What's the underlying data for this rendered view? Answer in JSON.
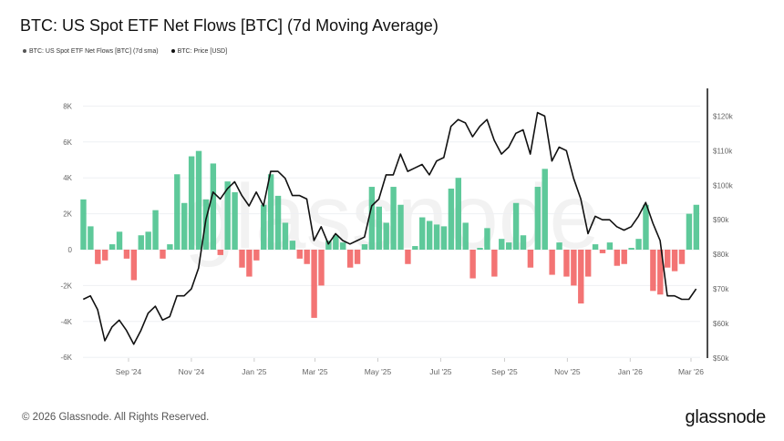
{
  "title": "BTC: US Spot ETF Net Flows [BTC] (7d Moving Average)",
  "legend": [
    {
      "label": "BTC: US Spot ETF Net Flows [BTC] (7d sma)",
      "color": "#555555"
    },
    {
      "label": "BTC: Price [USD]",
      "color": "#111111"
    }
  ],
  "footer": {
    "copyright": "© 2026 Glassnode. All Rights Reserved.",
    "logo": "glassnode",
    "watermark": "glassnode"
  },
  "chart_data": {
    "type": "bar+line",
    "title": "BTC: US Spot ETF Net Flows [BTC] (7d Moving Average)",
    "grid": true,
    "left_axis": {
      "ylim": [
        -6000,
        8000
      ],
      "ticks": [
        -6000,
        -4000,
        -2000,
        0,
        2000,
        4000,
        6000,
        8000
      ],
      "tick_labels": [
        "-6K",
        "-4K",
        "-2K",
        "0",
        "2K",
        "4K",
        "6K",
        "8K"
      ]
    },
    "right_axis": {
      "ylim": [
        50000,
        128000
      ],
      "ticks": [
        50000,
        60000,
        70000,
        80000,
        90000,
        100000,
        110000,
        120000
      ],
      "tick_labels": [
        "$50k",
        "$60k",
        "$70k",
        "$80k",
        "$90k",
        "$100k",
        "$110k",
        "$120k"
      ]
    },
    "x_ticks": [
      {
        "date": "2024-09-01",
        "label": "Sep '24"
      },
      {
        "date": "2024-11-01",
        "label": "Nov '24"
      },
      {
        "date": "2025-01-01",
        "label": "Jan '25"
      },
      {
        "date": "2025-03-01",
        "label": "Mar '25"
      },
      {
        "date": "2025-05-01",
        "label": "May '25"
      },
      {
        "date": "2025-07-01",
        "label": "Jul '25"
      },
      {
        "date": "2025-09-01",
        "label": "Sep '25"
      },
      {
        "date": "2025-11-01",
        "label": "Nov '25"
      },
      {
        "date": "2026-01-01",
        "label": "Jan '26"
      },
      {
        "date": "2026-03-01",
        "label": "Mar '26"
      }
    ],
    "colors": {
      "positive": "#4cc38f",
      "negative": "#f26565",
      "price": "#111111"
    },
    "dates": [
      "2024-07-19",
      "2024-07-26",
      "2024-08-02",
      "2024-08-09",
      "2024-08-16",
      "2024-08-23",
      "2024-08-30",
      "2024-09-06",
      "2024-09-13",
      "2024-09-20",
      "2024-09-27",
      "2024-10-04",
      "2024-10-11",
      "2024-10-18",
      "2024-10-25",
      "2024-11-01",
      "2024-11-08",
      "2024-11-15",
      "2024-11-22",
      "2024-11-29",
      "2024-12-06",
      "2024-12-13",
      "2024-12-20",
      "2024-12-27",
      "2025-01-03",
      "2025-01-10",
      "2025-01-17",
      "2025-01-24",
      "2025-01-31",
      "2025-02-07",
      "2025-02-14",
      "2025-02-21",
      "2025-02-28",
      "2025-03-07",
      "2025-03-14",
      "2025-03-21",
      "2025-03-28",
      "2025-04-04",
      "2025-04-11",
      "2025-04-18",
      "2025-04-25",
      "2025-05-02",
      "2025-05-09",
      "2025-05-16",
      "2025-05-23",
      "2025-05-30",
      "2025-06-06",
      "2025-06-13",
      "2025-06-20",
      "2025-06-27",
      "2025-07-04",
      "2025-07-11",
      "2025-07-18",
      "2025-07-25",
      "2025-08-01",
      "2025-08-08",
      "2025-08-15",
      "2025-08-22",
      "2025-08-29",
      "2025-09-05",
      "2025-09-12",
      "2025-09-19",
      "2025-09-26",
      "2025-10-03",
      "2025-10-10",
      "2025-10-17",
      "2025-10-24",
      "2025-10-31",
      "2025-11-07",
      "2025-11-14",
      "2025-11-21",
      "2025-11-28",
      "2025-12-05",
      "2025-12-12",
      "2025-12-19",
      "2025-12-26",
      "2026-01-02",
      "2026-01-09",
      "2026-01-16",
      "2026-01-23",
      "2026-01-30",
      "2026-02-06",
      "2026-02-13",
      "2026-02-20",
      "2026-02-27",
      "2026-03-06"
    ],
    "series": [
      {
        "name": "BTC: US Spot ETF Net Flows [BTC] (7d sma)",
        "axis": "left",
        "type": "bar",
        "values": [
          2800,
          1300,
          -800,
          -600,
          300,
          1000,
          -500,
          -1700,
          800,
          1000,
          2200,
          -500,
          300,
          4200,
          2600,
          5200,
          5500,
          2800,
          4800,
          -300,
          3800,
          3200,
          -1000,
          -1500,
          -600,
          2500,
          4200,
          3000,
          1500,
          500,
          -500,
          -800,
          -3800,
          -2000,
          500,
          800,
          400,
          -1000,
          -800,
          300,
          3500,
          2400,
          1500,
          3500,
          2500,
          -800,
          200,
          1800,
          1600,
          1400,
          1300,
          3400,
          4000,
          1500,
          -1600,
          100,
          1200,
          -1500,
          600,
          400,
          2600,
          800,
          -1000,
          3500,
          4500,
          -1400,
          400,
          -1500,
          -2000,
          -3000,
          -1500,
          300,
          -200,
          400,
          -900,
          -800,
          100,
          600,
          2500,
          -2300,
          -2500,
          -1000,
          -1200,
          -800,
          2000,
          2500
        ]
      },
      {
        "name": "BTC: Price [USD]",
        "axis": "right",
        "type": "line",
        "values": [
          67000,
          68000,
          64000,
          55000,
          59000,
          61000,
          58000,
          54000,
          58000,
          63000,
          65000,
          61000,
          62000,
          68000,
          68000,
          70000,
          76000,
          90000,
          98000,
          96000,
          99000,
          101000,
          97000,
          94000,
          98000,
          94000,
          104000,
          104000,
          102000,
          97000,
          97000,
          96000,
          84000,
          88000,
          83000,
          86000,
          84000,
          83000,
          84000,
          85000,
          94000,
          96000,
          103000,
          103000,
          109000,
          104000,
          105000,
          106000,
          103000,
          107000,
          108000,
          117000,
          119000,
          118000,
          114000,
          117000,
          119000,
          113000,
          109000,
          111000,
          115000,
          116000,
          109000,
          121000,
          120000,
          107000,
          111000,
          110000,
          102000,
          96000,
          86000,
          91000,
          90000,
          90000,
          88000,
          87000,
          88000,
          91000,
          95000,
          89000,
          84000,
          68000,
          68000,
          67000,
          67000,
          70000
        ]
      }
    ]
  }
}
